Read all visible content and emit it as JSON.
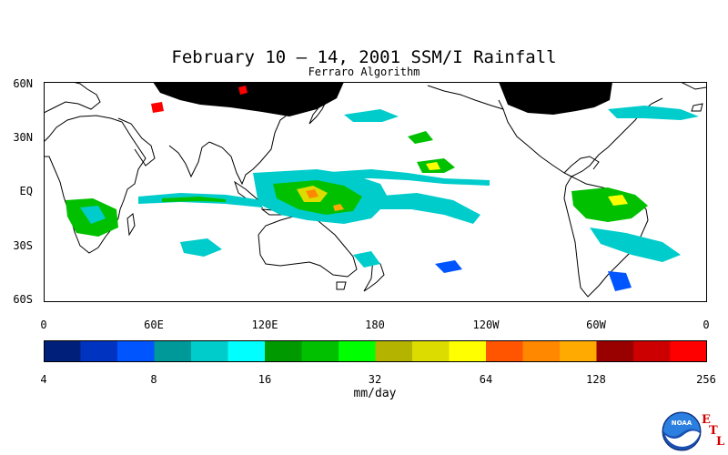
{
  "title": "February 10 – 14, 2001 SSM/I Rainfall",
  "subtitle": "Ferraro Algorithm",
  "lat_labels": [
    "60N",
    "30N",
    "EQ",
    "30S",
    "60S"
  ],
  "lon_labels": [
    "0",
    "60E",
    "120E",
    "180",
    "120W",
    "60W",
    "0"
  ],
  "colorbar": {
    "tick_labels": [
      "4",
      "8",
      "16",
      "32",
      "64",
      "128",
      "256"
    ],
    "unit": "mm/day",
    "colors": [
      "#001f7a",
      "#0033c0",
      "#0055ff",
      "#009999",
      "#00cccc",
      "#00ffff",
      "#009900",
      "#00c000",
      "#00ff00",
      "#b3b300",
      "#dcdc00",
      "#ffff00",
      "#ff5500",
      "#ff8800",
      "#ffaa00",
      "#990000",
      "#cc0000",
      "#ff0000"
    ]
  },
  "logo": {
    "text": "NOAA",
    "side_letters": [
      "E",
      "T",
      "L"
    ]
  },
  "map": {
    "ocean_color": "#ffffff",
    "coast_color": "#000000",
    "no_data_color": "#000000"
  }
}
